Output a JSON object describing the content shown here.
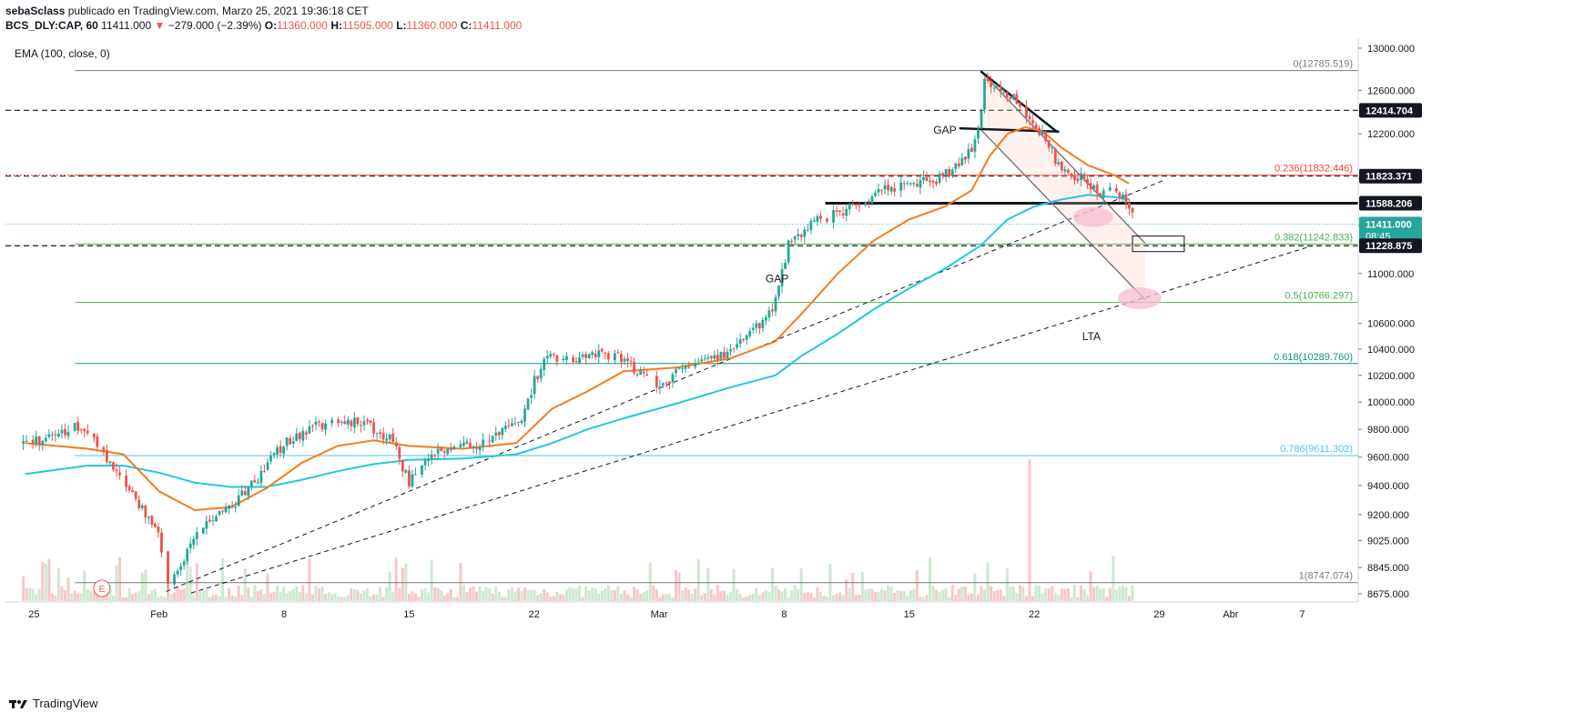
{
  "header": {
    "author": "sebaSclass",
    "published_text": "publicado en TradingView.com, Marzo 25, 2021 19:36:18 CET",
    "symbol": "BCS_DLY:CAP, 60",
    "last": "11411.000",
    "arrow": "▼",
    "change": "−279.000 (−2.39%)",
    "o_label": "O:",
    "o": "11360.000",
    "h_label": "H:",
    "h": "11505.000",
    "l_label": "L:",
    "l": "11360.000",
    "c_label": "C:",
    "c": "11411.000"
  },
  "indicator": {
    "label": "EMA (100, close, 0)"
  },
  "footer": {
    "brand": "TradingView"
  },
  "colors": {
    "up": "#26a69a",
    "down": "#ef5350",
    "ema_fast": "#f57c1f",
    "ema_slow": "#26c6da",
    "fib_green": "#4caf50",
    "fib_teal": "#089981",
    "fib_blue": "#4fc3f7",
    "fib_red": "#f44336",
    "fib_gray": "#787b86"
  },
  "chart_data": {
    "type": "candlestick",
    "y_axis": {
      "ticks": [
        "13000.000",
        "12600.000",
        "12200.000",
        "11800.000",
        "11400.000",
        "11000.000",
        "10600.000",
        "10400.000",
        "10200.000",
        "10000.000",
        "9800.000",
        "9600.000",
        "9400.000",
        "9200.000",
        "9025.000",
        "8845.000",
        "8675.000"
      ],
      "tick_values": [
        13000,
        12600,
        12200,
        11800,
        11400,
        11000,
        10600,
        10400,
        10200,
        10000,
        9800,
        9600,
        9400,
        9200,
        9025,
        8845,
        8675
      ],
      "scale_mode": "log"
    },
    "x_axis": {
      "ticks": [
        {
          "label": "25",
          "day": -6
        },
        {
          "label": "Feb",
          "day": 1
        },
        {
          "label": "8",
          "day": 8
        },
        {
          "label": "15",
          "day": 15
        },
        {
          "label": "22",
          "day": 22
        },
        {
          "label": "Mar",
          "day": 29
        },
        {
          "label": "8",
          "day": 36
        },
        {
          "label": "15",
          "day": 43
        },
        {
          "label": "22",
          "day": 50
        },
        {
          "label": "29",
          "day": 57
        },
        {
          "label": "Abr",
          "day": 61
        },
        {
          "label": "7",
          "day": 65
        }
      ]
    },
    "price_labels": [
      {
        "value": 12414.704,
        "text": "12414.704",
        "style": "dark"
      },
      {
        "value": 11823.371,
        "text": "11823.371",
        "style": "dark"
      },
      {
        "value": 11588.206,
        "text": "11588.206",
        "style": "dark"
      },
      {
        "value": 11411.0,
        "text": "11411.000",
        "sub": "08:45",
        "style": "teal"
      },
      {
        "value": 11228.875,
        "text": "11228.875",
        "style": "dark"
      }
    ],
    "fib_levels": [
      {
        "ratio": "0",
        "value": 12785.519,
        "text": "0(12785.519)",
        "color": "#787b86"
      },
      {
        "ratio": "0.236",
        "value": 11832.446,
        "text": "0.236(11832.446)",
        "color": "#f44336"
      },
      {
        "ratio": "0.382",
        "value": 11242.833,
        "text": "0.382(11242.833)",
        "color": "#4caf50"
      },
      {
        "ratio": "0.5",
        "value": 10766.297,
        "text": "0.5(10766.297)",
        "color": "#4caf50"
      },
      {
        "ratio": "0.618",
        "value": 10289.76,
        "text": "0.618(10289.760)",
        "color": "#089981"
      },
      {
        "ratio": "0.786",
        "value": 9611.302,
        "text": "0.786(9611.302)",
        "color": "#4fc3f7"
      },
      {
        "ratio": "1",
        "value": 8747.074,
        "text": "1(8747.074)",
        "color": "#787b86"
      }
    ],
    "annotations": [
      {
        "text": "GAP",
        "day": 35.6,
        "value": 10930
      },
      {
        "text": "GAP",
        "day": 45.0,
        "value": 12200
      },
      {
        "text": "LTA",
        "day": 53.2,
        "value": 10470
      }
    ],
    "event_marker": {
      "text": "E",
      "day": -2.2
    },
    "keypoints": [
      [
        -6.5,
        9690
      ],
      [
        -5,
        9740
      ],
      [
        -3.5,
        9830
      ],
      [
        -2,
        9610
      ],
      [
        -0.5,
        9350
      ],
      [
        1,
        9050
      ],
      [
        1.5,
        8745
      ],
      [
        2.5,
        8920
      ],
      [
        3.5,
        9150
      ],
      [
        5,
        9250
      ],
      [
        6.5,
        9450
      ],
      [
        8,
        9700
      ],
      [
        9.5,
        9810
      ],
      [
        11,
        9870
      ],
      [
        12.5,
        9840
      ],
      [
        14,
        9730
      ],
      [
        15,
        9420
      ],
      [
        16,
        9600
      ],
      [
        17.5,
        9660
      ],
      [
        19,
        9690
      ],
      [
        20.5,
        9800
      ],
      [
        21.5,
        9920
      ],
      [
        22,
        10150
      ],
      [
        22.7,
        10350
      ],
      [
        24,
        10320
      ],
      [
        25.5,
        10360
      ],
      [
        27,
        10330
      ],
      [
        28,
        10200
      ],
      [
        29,
        10100
      ],
      [
        30,
        10230
      ],
      [
        31.5,
        10290
      ],
      [
        33,
        10400
      ],
      [
        34.5,
        10580
      ],
      [
        35.4,
        10730
      ],
      [
        35.7,
        10920
      ],
      [
        36,
        11050
      ],
      [
        36.2,
        11280
      ],
      [
        36.6,
        11290
      ],
      [
        37.5,
        11410
      ],
      [
        38.5,
        11480
      ],
      [
        39.3,
        11520
      ],
      [
        40,
        11560
      ],
      [
        41.5,
        11700
      ],
      [
        43,
        11760
      ],
      [
        44.5,
        11780
      ],
      [
        45.6,
        11900
      ],
      [
        46.5,
        12070
      ],
      [
        46.9,
        12240
      ],
      [
        47.2,
        12700
      ],
      [
        48,
        12620
      ],
      [
        49,
        12510
      ],
      [
        50,
        12300
      ],
      [
        50.7,
        12130
      ],
      [
        51.3,
        11940
      ],
      [
        52,
        11800
      ],
      [
        52.8,
        11840
      ],
      [
        53.5,
        11660
      ],
      [
        54,
        11690
      ],
      [
        54.7,
        11680
      ],
      [
        55.3,
        11570
      ],
      [
        55.6,
        11450
      ]
    ],
    "ema_fast": [
      [
        -6.5,
        9700
      ],
      [
        -3,
        9660
      ],
      [
        -1,
        9620
      ],
      [
        1,
        9360
      ],
      [
        3,
        9230
      ],
      [
        5,
        9250
      ],
      [
        7,
        9380
      ],
      [
        9,
        9560
      ],
      [
        11,
        9680
      ],
      [
        13,
        9720
      ],
      [
        15,
        9680
      ],
      [
        18,
        9660
      ],
      [
        21,
        9700
      ],
      [
        23,
        9950
      ],
      [
        25,
        10080
      ],
      [
        27,
        10230
      ],
      [
        30,
        10260
      ],
      [
        33,
        10330
      ],
      [
        35.5,
        10460
      ],
      [
        37,
        10680
      ],
      [
        39,
        11000
      ],
      [
        41,
        11270
      ],
      [
        43,
        11450
      ],
      [
        45,
        11560
      ],
      [
        46.5,
        11700
      ],
      [
        47.5,
        12000
      ],
      [
        48.5,
        12200
      ],
      [
        49.5,
        12260
      ],
      [
        50.5,
        12220
      ],
      [
        51.5,
        12080
      ],
      [
        53,
        11920
      ],
      [
        54.5,
        11830
      ],
      [
        55.3,
        11760
      ]
    ],
    "ema_slow": [
      [
        -6.5,
        9480
      ],
      [
        -3,
        9540
      ],
      [
        -1,
        9540
      ],
      [
        1,
        9490
      ],
      [
        3,
        9420
      ],
      [
        5,
        9390
      ],
      [
        7,
        9390
      ],
      [
        9,
        9440
      ],
      [
        11,
        9500
      ],
      [
        13,
        9550
      ],
      [
        15,
        9580
      ],
      [
        18,
        9590
      ],
      [
        21,
        9620
      ],
      [
        23,
        9700
      ],
      [
        25,
        9800
      ],
      [
        27,
        9880
      ],
      [
        30,
        9990
      ],
      [
        33,
        10110
      ],
      [
        35.5,
        10200
      ],
      [
        37,
        10350
      ],
      [
        39,
        10520
      ],
      [
        41,
        10710
      ],
      [
        43,
        10880
      ],
      [
        45,
        11040
      ],
      [
        47,
        11230
      ],
      [
        48.5,
        11450
      ],
      [
        50,
        11560
      ],
      [
        51.5,
        11620
      ],
      [
        53,
        11660
      ],
      [
        54.5,
        11640
      ],
      [
        55.3,
        11620
      ]
    ],
    "volume_spike_day": 49.7
  }
}
